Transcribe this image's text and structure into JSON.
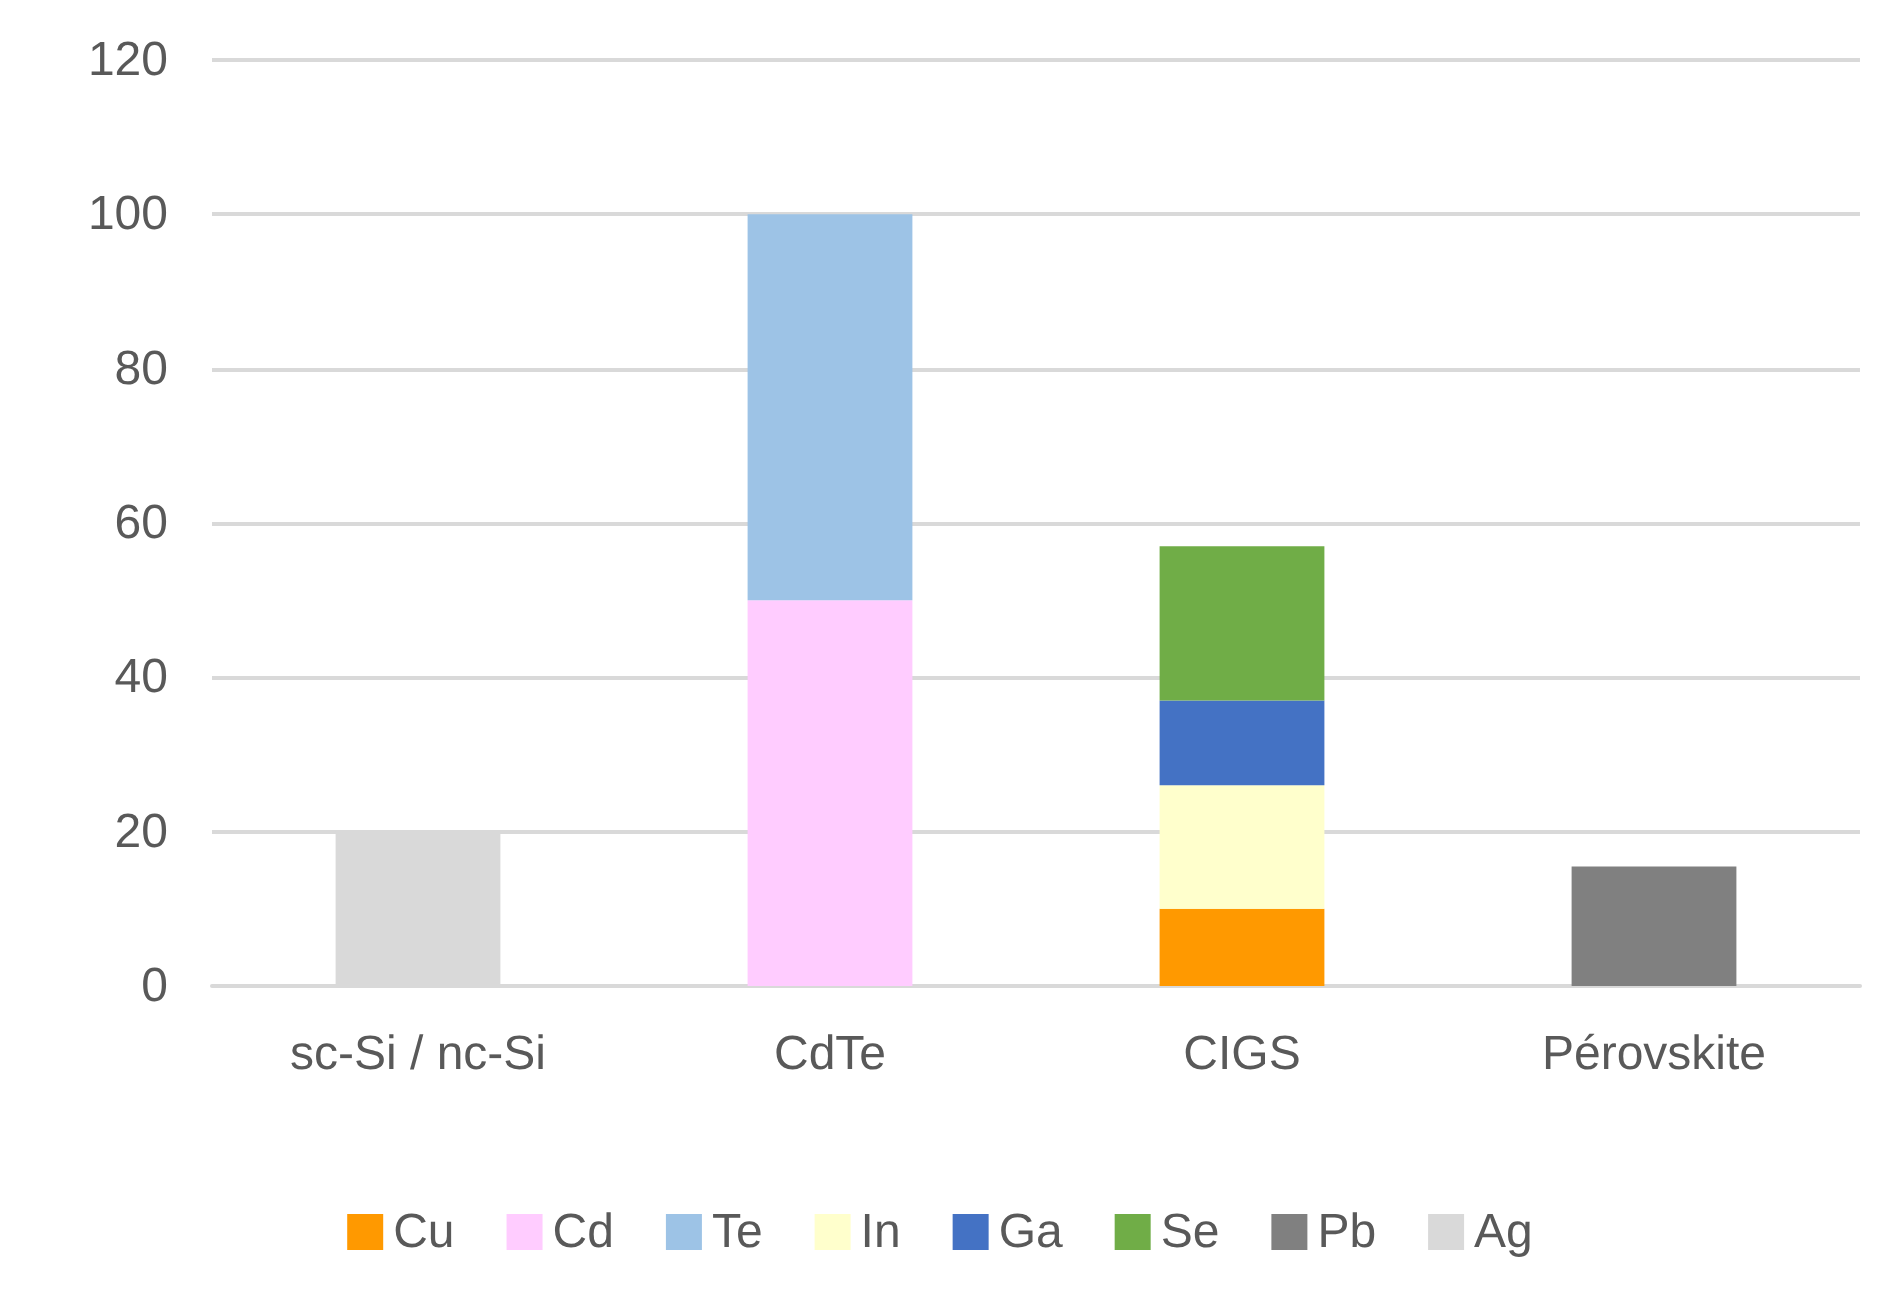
{
  "chart_data": {
    "type": "bar",
    "stacked": true,
    "categories": [
      "sc-Si / nc-Si",
      "CdTe",
      "CIGS",
      "Pérovskite"
    ],
    "series": [
      {
        "name": "Cu",
        "color": "#ff9900",
        "values": [
          null,
          null,
          10,
          null
        ]
      },
      {
        "name": "Cd",
        "color": "#ffccff",
        "values": [
          null,
          50,
          null,
          null
        ]
      },
      {
        "name": "Te",
        "color": "#9dc3e6",
        "values": [
          null,
          50,
          null,
          null
        ]
      },
      {
        "name": "In",
        "color": "#ffffcc",
        "values": [
          null,
          null,
          16,
          null
        ]
      },
      {
        "name": "Ga",
        "color": "#4472c4",
        "values": [
          null,
          null,
          11,
          null
        ]
      },
      {
        "name": "Se",
        "color": "#70ad47",
        "values": [
          null,
          null,
          20,
          null
        ]
      },
      {
        "name": "Pb",
        "color": "#808080",
        "values": [
          null,
          null,
          null,
          15.5
        ]
      },
      {
        "name": "Ag",
        "color": "#d9d9d9",
        "values": [
          20,
          null,
          null,
          null
        ]
      }
    ],
    "ylim": [
      0,
      120
    ],
    "yticks": [
      0,
      20,
      40,
      60,
      80,
      100,
      120
    ],
    "grid": "y",
    "legend": "bottom"
  }
}
